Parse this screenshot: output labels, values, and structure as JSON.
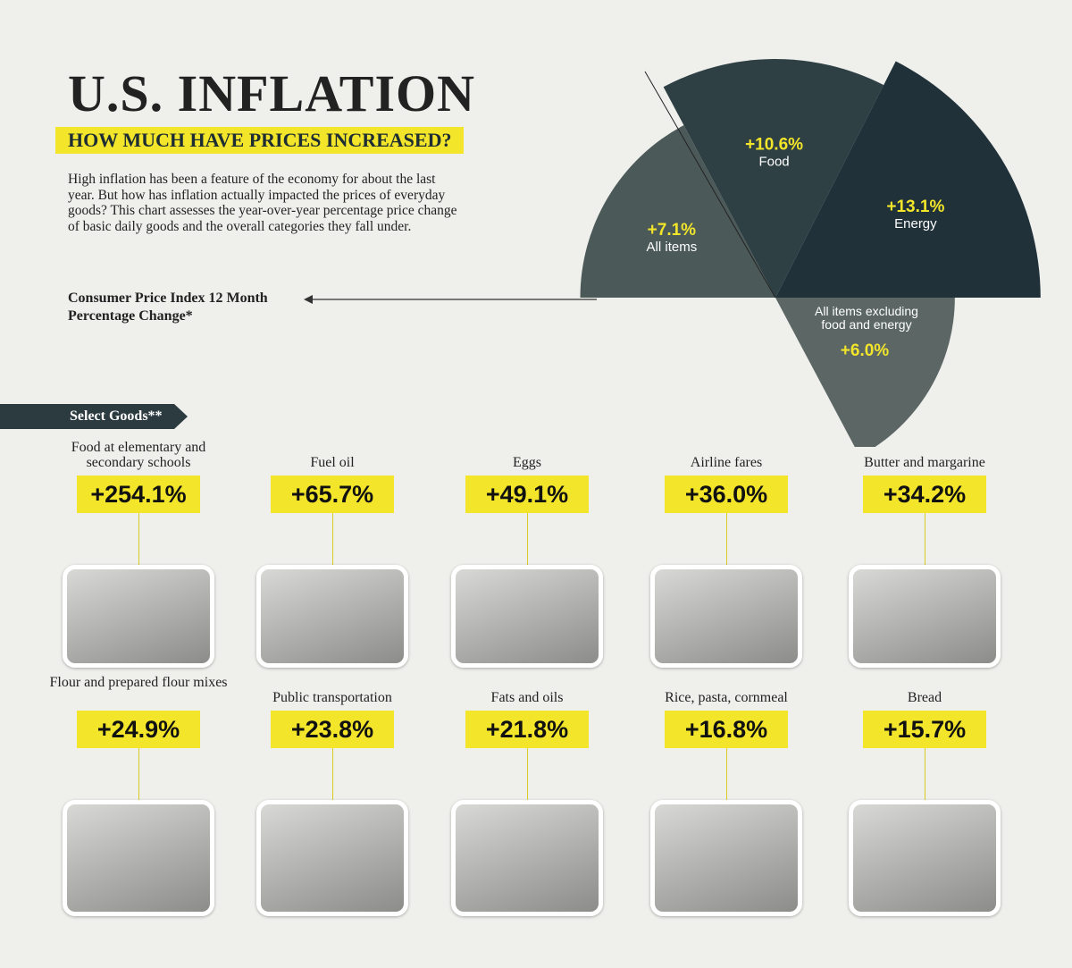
{
  "header": {
    "title": "U.S. INFLATION",
    "subtitle": "HOW MUCH HAVE PRICES INCREASED?",
    "description": "High inflation has been a feature of the economy for about the last year. But how has inflation actually impacted the prices of everyday goods? This chart assesses the year-over-year percentage price change of basic daily goods and the overall categories they fall under."
  },
  "chart_data": [
    {
      "type": "polar",
      "title": "Consumer Price Index 12 Month Percentage Change*",
      "categories": [
        "All items",
        "Food",
        "Energy",
        "All items excluding food and energy"
      ],
      "values": [
        7.1,
        10.6,
        13.1,
        6.0
      ],
      "value_labels": [
        "+7.1%",
        "+10.6%",
        "+13.1%",
        "+6.0%"
      ],
      "colors": [
        "#4b5958",
        "#2f4045",
        "#20313a",
        "#5b6665"
      ]
    },
    {
      "type": "labels",
      "title": "Select Goods**",
      "categories": [
        "Food at elementary and secondary schools",
        "Fuel oil",
        "Eggs",
        "Airline fares",
        "Butter and margarine",
        "Flour and prepared flour mixes",
        "Public transportation",
        "Fats and oils",
        "Rice, pasta, cornmeal",
        "Bread"
      ],
      "values": [
        254.1,
        65.7,
        49.1,
        36.0,
        34.2,
        24.9,
        23.8,
        21.8,
        16.8,
        15.7
      ],
      "value_labels": [
        "+254.1%",
        "+65.7%",
        "+49.1%",
        "+36.0%",
        "+34.2%",
        "+24.9%",
        "+23.8%",
        "+21.8%",
        "+16.8%",
        "+15.7%"
      ],
      "color": "#f2e52a"
    }
  ]
}
